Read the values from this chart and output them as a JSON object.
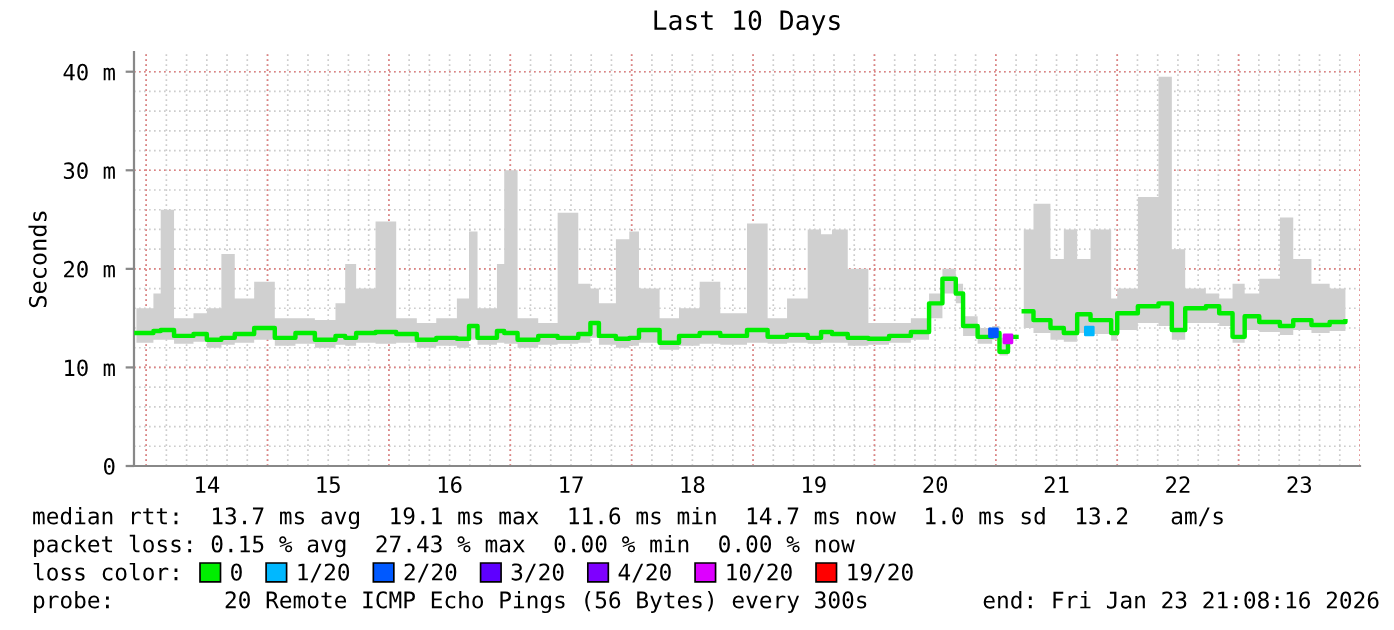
{
  "chart_data": {
    "type": "step",
    "title": "Last 10 Days",
    "ylabel": "Seconds",
    "legend_title": "loss color:",
    "legend": "bottom",
    "grid": true,
    "xlim": [
      13.9,
      24.0
    ],
    "ylim": [
      0,
      42
    ],
    "xticks": [
      {
        "value": 14,
        "label": null
      },
      {
        "value": 14.5,
        "label": "14"
      },
      {
        "value": 15,
        "label": null
      },
      {
        "value": 15.5,
        "label": "15"
      },
      {
        "value": 16,
        "label": null
      },
      {
        "value": 16.5,
        "label": "16"
      },
      {
        "value": 17,
        "label": null
      },
      {
        "value": 17.5,
        "label": "17"
      },
      {
        "value": 18,
        "label": null
      },
      {
        "value": 18.5,
        "label": "18"
      },
      {
        "value": 19,
        "label": null
      },
      {
        "value": 19.5,
        "label": "19"
      },
      {
        "value": 20,
        "label": null
      },
      {
        "value": 20.5,
        "label": "20"
      },
      {
        "value": 21,
        "label": null
      },
      {
        "value": 21.5,
        "label": "21"
      },
      {
        "value": 22,
        "label": null
      },
      {
        "value": 22.5,
        "label": "22"
      },
      {
        "value": 23,
        "label": null
      },
      {
        "value": 23.5,
        "label": "23"
      },
      {
        "value": 24,
        "label": null
      }
    ],
    "yticks": [
      {
        "value": 0,
        "label": "0"
      },
      {
        "value": 10,
        "label": "10 m"
      },
      {
        "value": 20,
        "label": "20 m"
      },
      {
        "value": 30,
        "label": "30 m"
      },
      {
        "value": 40,
        "label": "40 m"
      }
    ],
    "series": [
      {
        "name": "0",
        "color": "#00ee00",
        "x": [
          13.92,
          14.06,
          14.12,
          14.23,
          14.39,
          14.5,
          14.62,
          14.73,
          14.89,
          15.06,
          15.23,
          15.39,
          15.56,
          15.64,
          15.73,
          15.89,
          16.06,
          16.23,
          16.39,
          16.56,
          16.66,
          16.73,
          16.89,
          16.95,
          17.06,
          17.23,
          17.39,
          17.56,
          17.66,
          17.73,
          17.87,
          17.98,
          18.06,
          18.23,
          18.39,
          18.56,
          18.73,
          18.95,
          19.12,
          19.28,
          19.45,
          19.56,
          19.65,
          19.78,
          19.95,
          20.12,
          20.3,
          20.45,
          20.56,
          20.67,
          20.73,
          20.85,
          20.97,
          21.03,
          21.1,
          21.17,
          21.23,
          21.31,
          21.45,
          21.56,
          21.67,
          21.78,
          21.95,
          22.0,
          22.17,
          22.34,
          22.45,
          22.56,
          22.73,
          22.84,
          22.95,
          23.05,
          23.17,
          23.34,
          23.45,
          23.6,
          23.75,
          23.88
        ],
        "values": [
          13.5,
          13.7,
          13.8,
          13.2,
          13.4,
          12.8,
          13.0,
          13.4,
          14.0,
          13.0,
          13.5,
          12.8,
          13.2,
          13.0,
          13.5,
          13.6,
          13.4,
          12.8,
          13.0,
          12.9,
          14.2,
          13.0,
          13.7,
          13.5,
          12.8,
          13.2,
          13.0,
          13.4,
          14.5,
          13.2,
          12.9,
          13.0,
          13.8,
          12.5,
          13.2,
          13.5,
          13.2,
          13.8,
          13.1,
          13.3,
          13.0,
          13.6,
          13.4,
          13.0,
          12.9,
          13.2,
          13.6,
          16.5,
          19.0,
          17.5,
          14.2,
          13.1,
          13.5,
          11.6,
          13.1,
          null,
          15.7,
          14.8,
          14.0,
          13.5,
          15.4,
          14.8,
          13.5,
          15.5,
          16.2,
          16.5,
          13.8,
          16.0,
          16.2,
          15.5,
          13.1,
          15.2,
          14.6,
          14.2,
          14.8,
          14.3,
          14.6,
          14.7
        ],
        "lower": [
          12.5,
          12.8,
          12.8,
          12.4,
          12.6,
          12.0,
          12.3,
          12.5,
          12.8,
          12.2,
          12.4,
          12.0,
          12.3,
          12.2,
          12.5,
          12.4,
          12.5,
          12.0,
          12.2,
          12.0,
          12.8,
          12.3,
          12.5,
          12.4,
          12.0,
          12.3,
          12.4,
          12.5,
          13.0,
          12.3,
          12.0,
          12.2,
          12.5,
          11.8,
          12.2,
          12.4,
          12.3,
          12.5,
          12.4,
          12.5,
          12.4,
          12.5,
          12.5,
          12.2,
          12.3,
          12.5,
          12.8,
          15.0,
          17.5,
          16.5,
          13.2,
          12.4,
          12.8,
          11.2,
          12.3,
          null,
          14.0,
          13.5,
          12.8,
          12.6,
          13.5,
          13.4,
          12.7,
          13.8,
          14.5,
          14.2,
          12.8,
          14.5,
          14.5,
          14.2,
          12.5,
          13.8,
          13.6,
          13.3,
          13.8,
          13.5,
          13.7,
          13.9
        ],
        "upper": [
          16,
          17.5,
          26,
          15,
          15.5,
          16,
          21.5,
          17,
          18.7,
          15,
          15,
          14.8,
          16.5,
          20.5,
          18,
          24.8,
          15,
          14.5,
          15,
          17,
          23.8,
          16,
          20.5,
          30,
          15,
          14.5,
          25.7,
          18.5,
          18,
          16.5,
          23,
          23.8,
          18,
          15,
          16,
          18.7,
          15.5,
          24.6,
          15,
          17,
          24,
          23.5,
          24,
          20,
          14.5,
          14.5,
          15,
          17.5,
          20,
          18.5,
          15.2,
          14,
          14.2,
          13,
          14,
          null,
          24,
          26.6,
          21,
          24,
          21,
          24,
          17,
          18,
          27.3,
          39.5,
          22,
          18,
          17.5,
          17,
          18.5,
          17.5,
          19,
          25.2,
          21,
          18.5,
          18,
          17.5
        ]
      },
      {
        "name": "1/20",
        "type": "scatter",
        "color": "#00b8ff",
        "x": [
          21.77
        ],
        "values": [
          13.7
        ]
      },
      {
        "name": "2/20",
        "type": "scatter",
        "color": "#0059ff",
        "x": [
          20.98
        ],
        "values": [
          13.5
        ]
      },
      {
        "name": "3/20",
        "type": "scatter",
        "color": "#5e00ff"
      },
      {
        "name": "4/20",
        "type": "scatter",
        "color": "#7e00ff"
      },
      {
        "name": "10/20",
        "type": "scatter",
        "color": "#dd00ff",
        "x": [
          21.1
        ],
        "values": [
          12.9
        ]
      },
      {
        "name": "19/20",
        "type": "scatter",
        "color": "#ff0000"
      }
    ],
    "annotations": [
      "median rtt:  13.7 ms avg  19.1 ms max  11.6 ms min  14.7 ms now  1.0 ms sd  13.2   am/s",
      "packet loss: 0.15 % avg  27.43 % max  0.00 % min  0.00 % now",
      "probe:        20 Remote ICMP Echo Pings (56 Bytes) every 300s",
      "end: Fri Jan 23 21:08:16 2026"
    ]
  }
}
